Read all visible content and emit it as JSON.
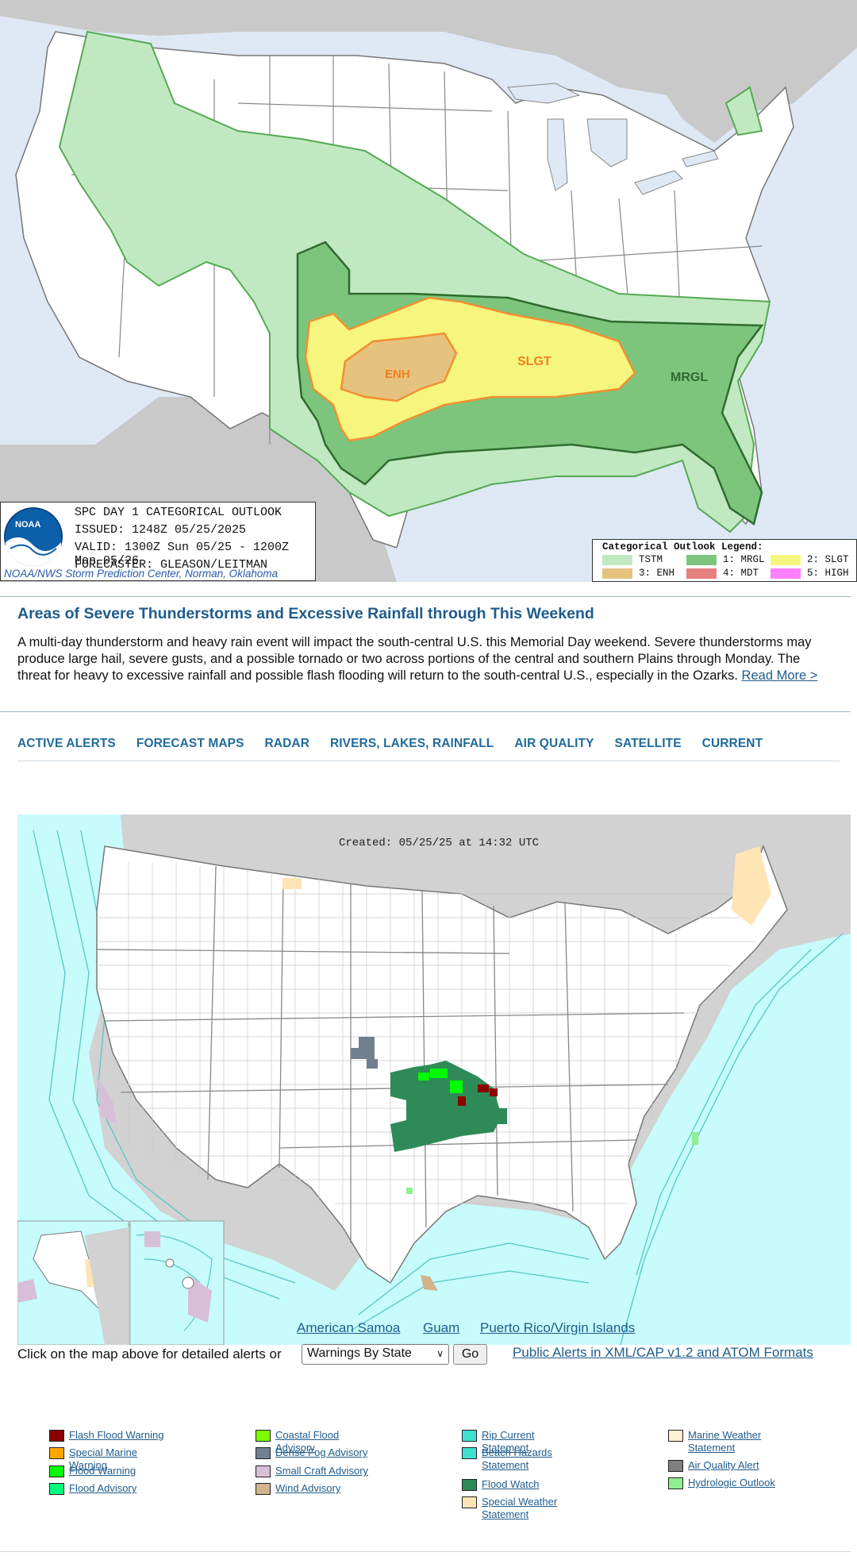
{
  "spc": {
    "labels": {
      "enh": "ENH",
      "slgt": "SLGT",
      "mrgl": "MRGL"
    },
    "info": {
      "title": "SPC DAY 1 CATEGORICAL OUTLOOK",
      "issued": "ISSUED: 1248Z 05/25/2025",
      "valid": "VALID: 1300Z Sun 05/25 - 1200Z Mon 05/26",
      "forecaster": "FORECASTER: GLEASON/LEITMAN",
      "credit": "NOAA/NWS Storm Prediction Center, Norman, Oklahoma",
      "logo_text": "NOAA"
    },
    "legend": {
      "title": "Categorical Outlook Legend:",
      "items": [
        {
          "label": "TSTM",
          "color": "#c1e9c1"
        },
        {
          "label": "1: MRGL",
          "color": "#7dc57d"
        },
        {
          "label": "2: SLGT",
          "color": "#f6f67f"
        },
        {
          "label": "3: ENH",
          "color": "#e6c27f"
        },
        {
          "label": "4: MDT",
          "color": "#e67f7f"
        },
        {
          "label": "5: HIGH",
          "color": "#ff80ff"
        }
      ]
    }
  },
  "story": {
    "headline": "Areas of Severe Thunderstorms and Excessive Rainfall through This Weekend",
    "body": "A multi-day thunderstorm and heavy rain event will impact the south-central U.S. this Memorial Day weekend. Severe thunderstorms may produce large hail, severe gusts, and a possible tornado or two across portions of the central and southern Plains through Monday. The threat for heavy to excessive rainfall and possible flash flooding will return to the south-central U.S., especially in the Ozarks.",
    "read_more": "Read More >"
  },
  "nav": {
    "items": [
      "ACTIVE ALERTS",
      "FORECAST MAPS",
      "RADAR",
      "RIVERS, LAKES, RAINFALL",
      "AIR QUALITY",
      "SATELLITE",
      "CURRENT"
    ]
  },
  "alerts_map": {
    "created": "Created: 05/25/25 at 14:32 UTC",
    "territories": [
      "American Samoa",
      "Guam",
      "Puerto Rico/Virgin Islands"
    ]
  },
  "controls": {
    "click_text": "Click on the map above for detailed alerts or",
    "select_value": "Warnings By State",
    "go_label": "Go",
    "xml_link": "Public Alerts in XML/CAP v1.2 and ATOM Formats"
  },
  "alert_legend": {
    "col1": [
      {
        "label": "Flash Flood Warning",
        "color": "#8b0000"
      },
      {
        "label": "Special Marine Warning",
        "color": "#ffa500"
      },
      {
        "label": "Flood Warning",
        "color": "#00ff00"
      },
      {
        "label": "Flood Advisory",
        "color": "#00ff7f"
      }
    ],
    "col2": [
      {
        "label": "Coastal Flood Advisory",
        "color": "#7cfc00"
      },
      {
        "label": "Dense Fog Advisory",
        "color": "#708090"
      },
      {
        "label": "Small Craft Advisory",
        "color": "#d8bfd8"
      },
      {
        "label": "Wind Advisory",
        "color": "#d2b48c"
      }
    ],
    "col3": [
      {
        "label": "Rip Current Statement",
        "color": "#40e0d0"
      },
      {
        "label": "Beach Hazards Statement",
        "color": "#40e0d0"
      },
      {
        "label": "Flood Watch",
        "color": "#2e8b57"
      },
      {
        "label": "Special Weather Statement",
        "color": "#ffe4b5"
      }
    ],
    "col4": [
      {
        "label": "Marine Weather Statement",
        "color": "#ffefd5"
      },
      {
        "label": "Air Quality Alert",
        "color": "#808080"
      },
      {
        "label": "Hydrologic Outlook",
        "color": "#90ee90"
      }
    ]
  }
}
